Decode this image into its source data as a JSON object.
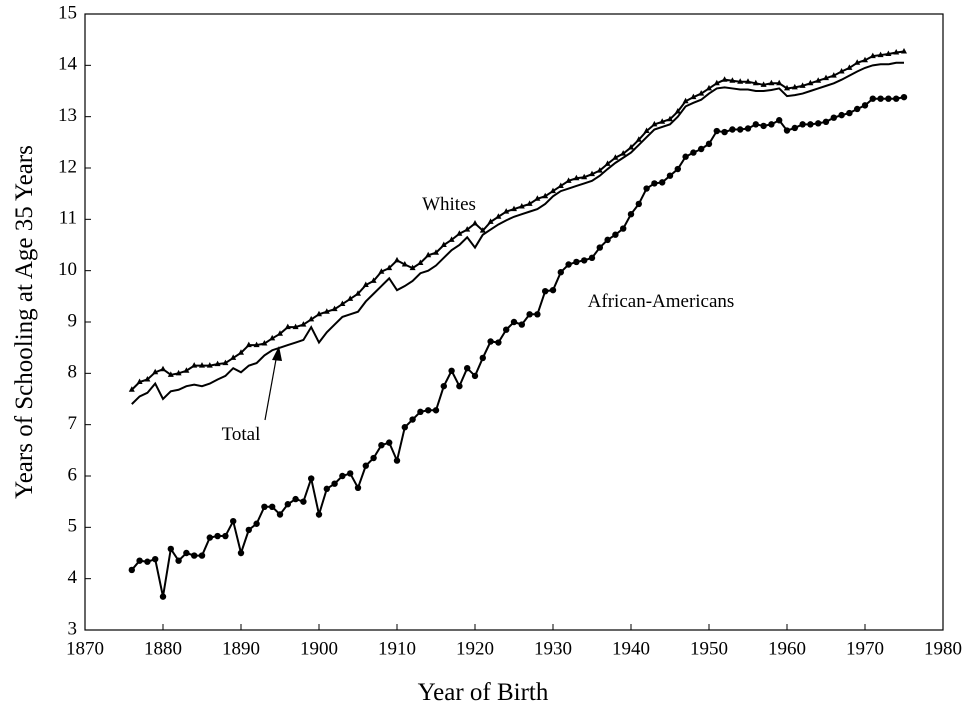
{
  "chart_data": {
    "type": "line",
    "xlabel": "Year of Birth",
    "ylabel": "Years of Schooling at Age 35 Years",
    "annotations": [
      "Whites",
      "Total",
      "African-Americans"
    ],
    "x": [
      1876,
      1877,
      1878,
      1879,
      1880,
      1881,
      1882,
      1883,
      1884,
      1885,
      1886,
      1887,
      1888,
      1889,
      1890,
      1891,
      1892,
      1893,
      1894,
      1895,
      1896,
      1897,
      1898,
      1899,
      1900,
      1901,
      1902,
      1903,
      1904,
      1905,
      1906,
      1907,
      1908,
      1909,
      1910,
      1911,
      1912,
      1913,
      1914,
      1915,
      1916,
      1917,
      1918,
      1919,
      1920,
      1921,
      1922,
      1923,
      1924,
      1925,
      1926,
      1927,
      1928,
      1929,
      1930,
      1931,
      1932,
      1933,
      1934,
      1935,
      1936,
      1937,
      1938,
      1939,
      1940,
      1941,
      1942,
      1943,
      1944,
      1945,
      1946,
      1947,
      1948,
      1949,
      1950,
      1951,
      1952,
      1953,
      1954,
      1955,
      1956,
      1957,
      1958,
      1959,
      1960,
      1961,
      1962,
      1963,
      1964,
      1965,
      1966,
      1967,
      1968,
      1969,
      1970,
      1971,
      1972,
      1973,
      1974,
      1975
    ],
    "series": [
      {
        "name": "Whites",
        "color": "#000000",
        "marker": "triangle",
        "values": [
          7.68,
          7.83,
          7.88,
          8.02,
          8.08,
          7.97,
          8.0,
          8.05,
          8.15,
          8.15,
          8.15,
          8.18,
          8.2,
          8.3,
          8.4,
          8.55,
          8.55,
          8.58,
          8.68,
          8.77,
          8.9,
          8.9,
          8.95,
          9.05,
          9.15,
          9.2,
          9.25,
          9.35,
          9.45,
          9.55,
          9.72,
          9.8,
          9.98,
          10.05,
          10.2,
          10.12,
          10.05,
          10.15,
          10.3,
          10.35,
          10.5,
          10.6,
          10.72,
          10.8,
          10.92,
          10.78,
          10.95,
          11.05,
          11.15,
          11.2,
          11.25,
          11.3,
          11.4,
          11.45,
          11.55,
          11.65,
          11.75,
          11.8,
          11.82,
          11.88,
          11.95,
          12.08,
          12.2,
          12.28,
          12.4,
          12.55,
          12.72,
          12.85,
          12.9,
          12.95,
          13.1,
          13.3,
          13.38,
          13.45,
          13.55,
          13.65,
          13.72,
          13.7,
          13.68,
          13.68,
          13.65,
          13.62,
          13.65,
          13.65,
          13.55,
          13.57,
          13.6,
          13.65,
          13.7,
          13.75,
          13.8,
          13.88,
          13.95,
          14.05,
          14.1,
          14.18,
          14.2,
          14.22,
          14.25,
          14.27
        ]
      },
      {
        "name": "Total",
        "color": "#000000",
        "marker": "none",
        "values": [
          7.4,
          7.55,
          7.62,
          7.8,
          7.5,
          7.65,
          7.68,
          7.75,
          7.78,
          7.75,
          7.8,
          7.88,
          7.95,
          8.1,
          8.02,
          8.15,
          8.2,
          8.35,
          8.45,
          8.5,
          8.55,
          8.6,
          8.65,
          8.9,
          8.6,
          8.8,
          8.95,
          9.1,
          9.15,
          9.2,
          9.4,
          9.55,
          9.7,
          9.85,
          9.62,
          9.7,
          9.8,
          9.95,
          10.0,
          10.1,
          10.25,
          10.4,
          10.5,
          10.65,
          10.45,
          10.7,
          10.8,
          10.9,
          10.98,
          11.05,
          11.1,
          11.15,
          11.2,
          11.3,
          11.45,
          11.55,
          11.6,
          11.65,
          11.7,
          11.75,
          11.85,
          11.98,
          12.1,
          12.2,
          12.3,
          12.45,
          12.6,
          12.75,
          12.8,
          12.85,
          13.0,
          13.2,
          13.27,
          13.33,
          13.45,
          13.55,
          13.57,
          13.55,
          13.53,
          13.53,
          13.5,
          13.5,
          13.52,
          13.55,
          13.4,
          13.42,
          13.45,
          13.5,
          13.55,
          13.6,
          13.65,
          13.72,
          13.8,
          13.88,
          13.95,
          14.0,
          14.02,
          14.02,
          14.05,
          14.05
        ]
      },
      {
        "name": "African-Americans",
        "color": "#000000",
        "marker": "circle",
        "values": [
          4.17,
          4.35,
          4.33,
          4.38,
          3.65,
          4.58,
          4.35,
          4.5,
          4.45,
          4.45,
          4.8,
          4.83,
          4.83,
          5.12,
          4.5,
          4.95,
          5.07,
          5.4,
          5.4,
          5.25,
          5.45,
          5.55,
          5.5,
          5.95,
          5.25,
          5.75,
          5.85,
          6.0,
          6.05,
          5.77,
          6.2,
          6.35,
          6.6,
          6.65,
          6.3,
          6.95,
          7.1,
          7.25,
          7.28,
          7.28,
          7.75,
          8.05,
          7.75,
          8.1,
          7.95,
          8.3,
          8.62,
          8.6,
          8.85,
          9.0,
          8.95,
          9.15,
          9.15,
          9.6,
          9.62,
          9.97,
          10.12,
          10.17,
          10.2,
          10.25,
          10.45,
          10.6,
          10.7,
          10.82,
          11.1,
          11.3,
          11.6,
          11.7,
          11.72,
          11.85,
          11.98,
          12.22,
          12.3,
          12.37,
          12.47,
          12.72,
          12.7,
          12.75,
          12.75,
          12.77,
          12.85,
          12.82,
          12.85,
          12.93,
          12.73,
          12.78,
          12.85,
          12.85,
          12.87,
          12.9,
          12.98,
          13.03,
          13.07,
          13.15,
          13.22,
          13.35,
          13.35,
          13.35,
          13.35,
          13.38
        ]
      }
    ],
    "xlim": [
      1870,
      1980
    ],
    "xticks": [
      1870,
      1880,
      1890,
      1900,
      1910,
      1920,
      1930,
      1940,
      1950,
      1960,
      1970,
      1980
    ],
    "ylim": [
      3,
      15
    ],
    "yticks": [
      3,
      4,
      5,
      6,
      7,
      8,
      9,
      10,
      11,
      12,
      13,
      14,
      15
    ]
  }
}
